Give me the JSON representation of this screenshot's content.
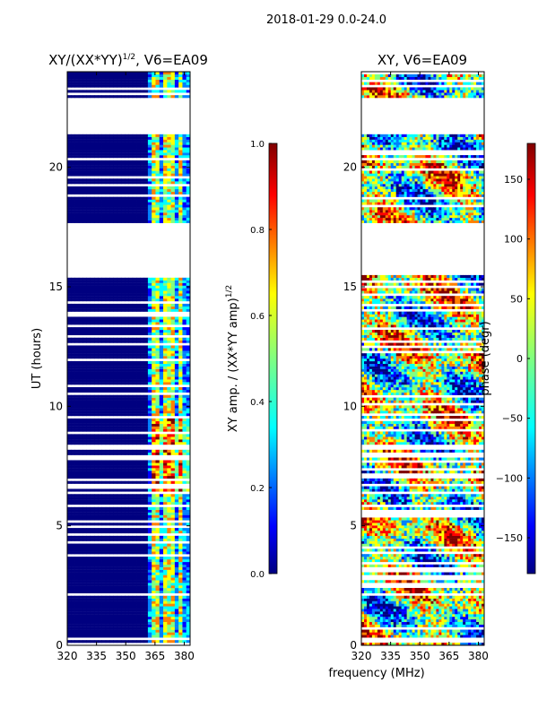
{
  "suptitle": "2018-01-29 0.0-24.0",
  "xlabel_shared": "frequency (MHz)",
  "colors": {
    "jet": [
      "#000080",
      "#0000ff",
      "#0080ff",
      "#00ffff",
      "#80ff80",
      "#ffff00",
      "#ff8000",
      "#ff0000",
      "#800000"
    ],
    "background": "#ffffff"
  },
  "chart_data": [
    {
      "type": "heatmap",
      "title": "XY/(XX*YY)^{1/2}, V6=EA09",
      "title_base": "XY/(XX*YY)",
      "title_exp": "1/2",
      "title_tail": ", V6=EA09",
      "xlabel": "",
      "ylabel": "UT (hours)",
      "xlim": [
        320,
        383
      ],
      "ylim": [
        0,
        24
      ],
      "xticks": [
        320,
        335,
        350,
        365,
        380
      ],
      "yticks": [
        0,
        5,
        10,
        15,
        20
      ],
      "data_gaps_hours": [
        [
          15.5,
          17.6
        ],
        [
          21.4,
          22.9
        ]
      ],
      "bright_channels_mhz": [
        364,
        366,
        371,
        373,
        378
      ],
      "colorbar": {
        "label": "XY amp. / (XX*YY amp)^{1/2}",
        "label_base": "XY amp. / (XX*YY amp)",
        "label_exp": "1/2",
        "min": 0.0,
        "max": 1.0,
        "ticks": [
          "0.0",
          "0.2",
          "0.4",
          "0.6",
          "0.8",
          "1.0"
        ],
        "tick_values": [
          0.0,
          0.2,
          0.4,
          0.6,
          0.8,
          1.0
        ]
      }
    },
    {
      "type": "heatmap",
      "title": "XY, V6=EA09",
      "xlabel": "",
      "ylabel": "",
      "xlim": [
        320,
        383
      ],
      "ylim": [
        0,
        24
      ],
      "xticks": [
        320,
        335,
        350,
        365,
        380
      ],
      "yticks": [
        0,
        5,
        10,
        15,
        20
      ],
      "data_gaps_hours": [
        [
          15.5,
          17.6
        ],
        [
          21.4,
          22.9
        ]
      ],
      "colorbar": {
        "label": "phase (degr)",
        "min": -180,
        "max": 180,
        "ticks": [
          "−150",
          "−100",
          "−50",
          "0",
          "50",
          "100",
          "150"
        ],
        "tick_values": [
          -150,
          -100,
          -50,
          0,
          50,
          100,
          150
        ]
      }
    }
  ]
}
